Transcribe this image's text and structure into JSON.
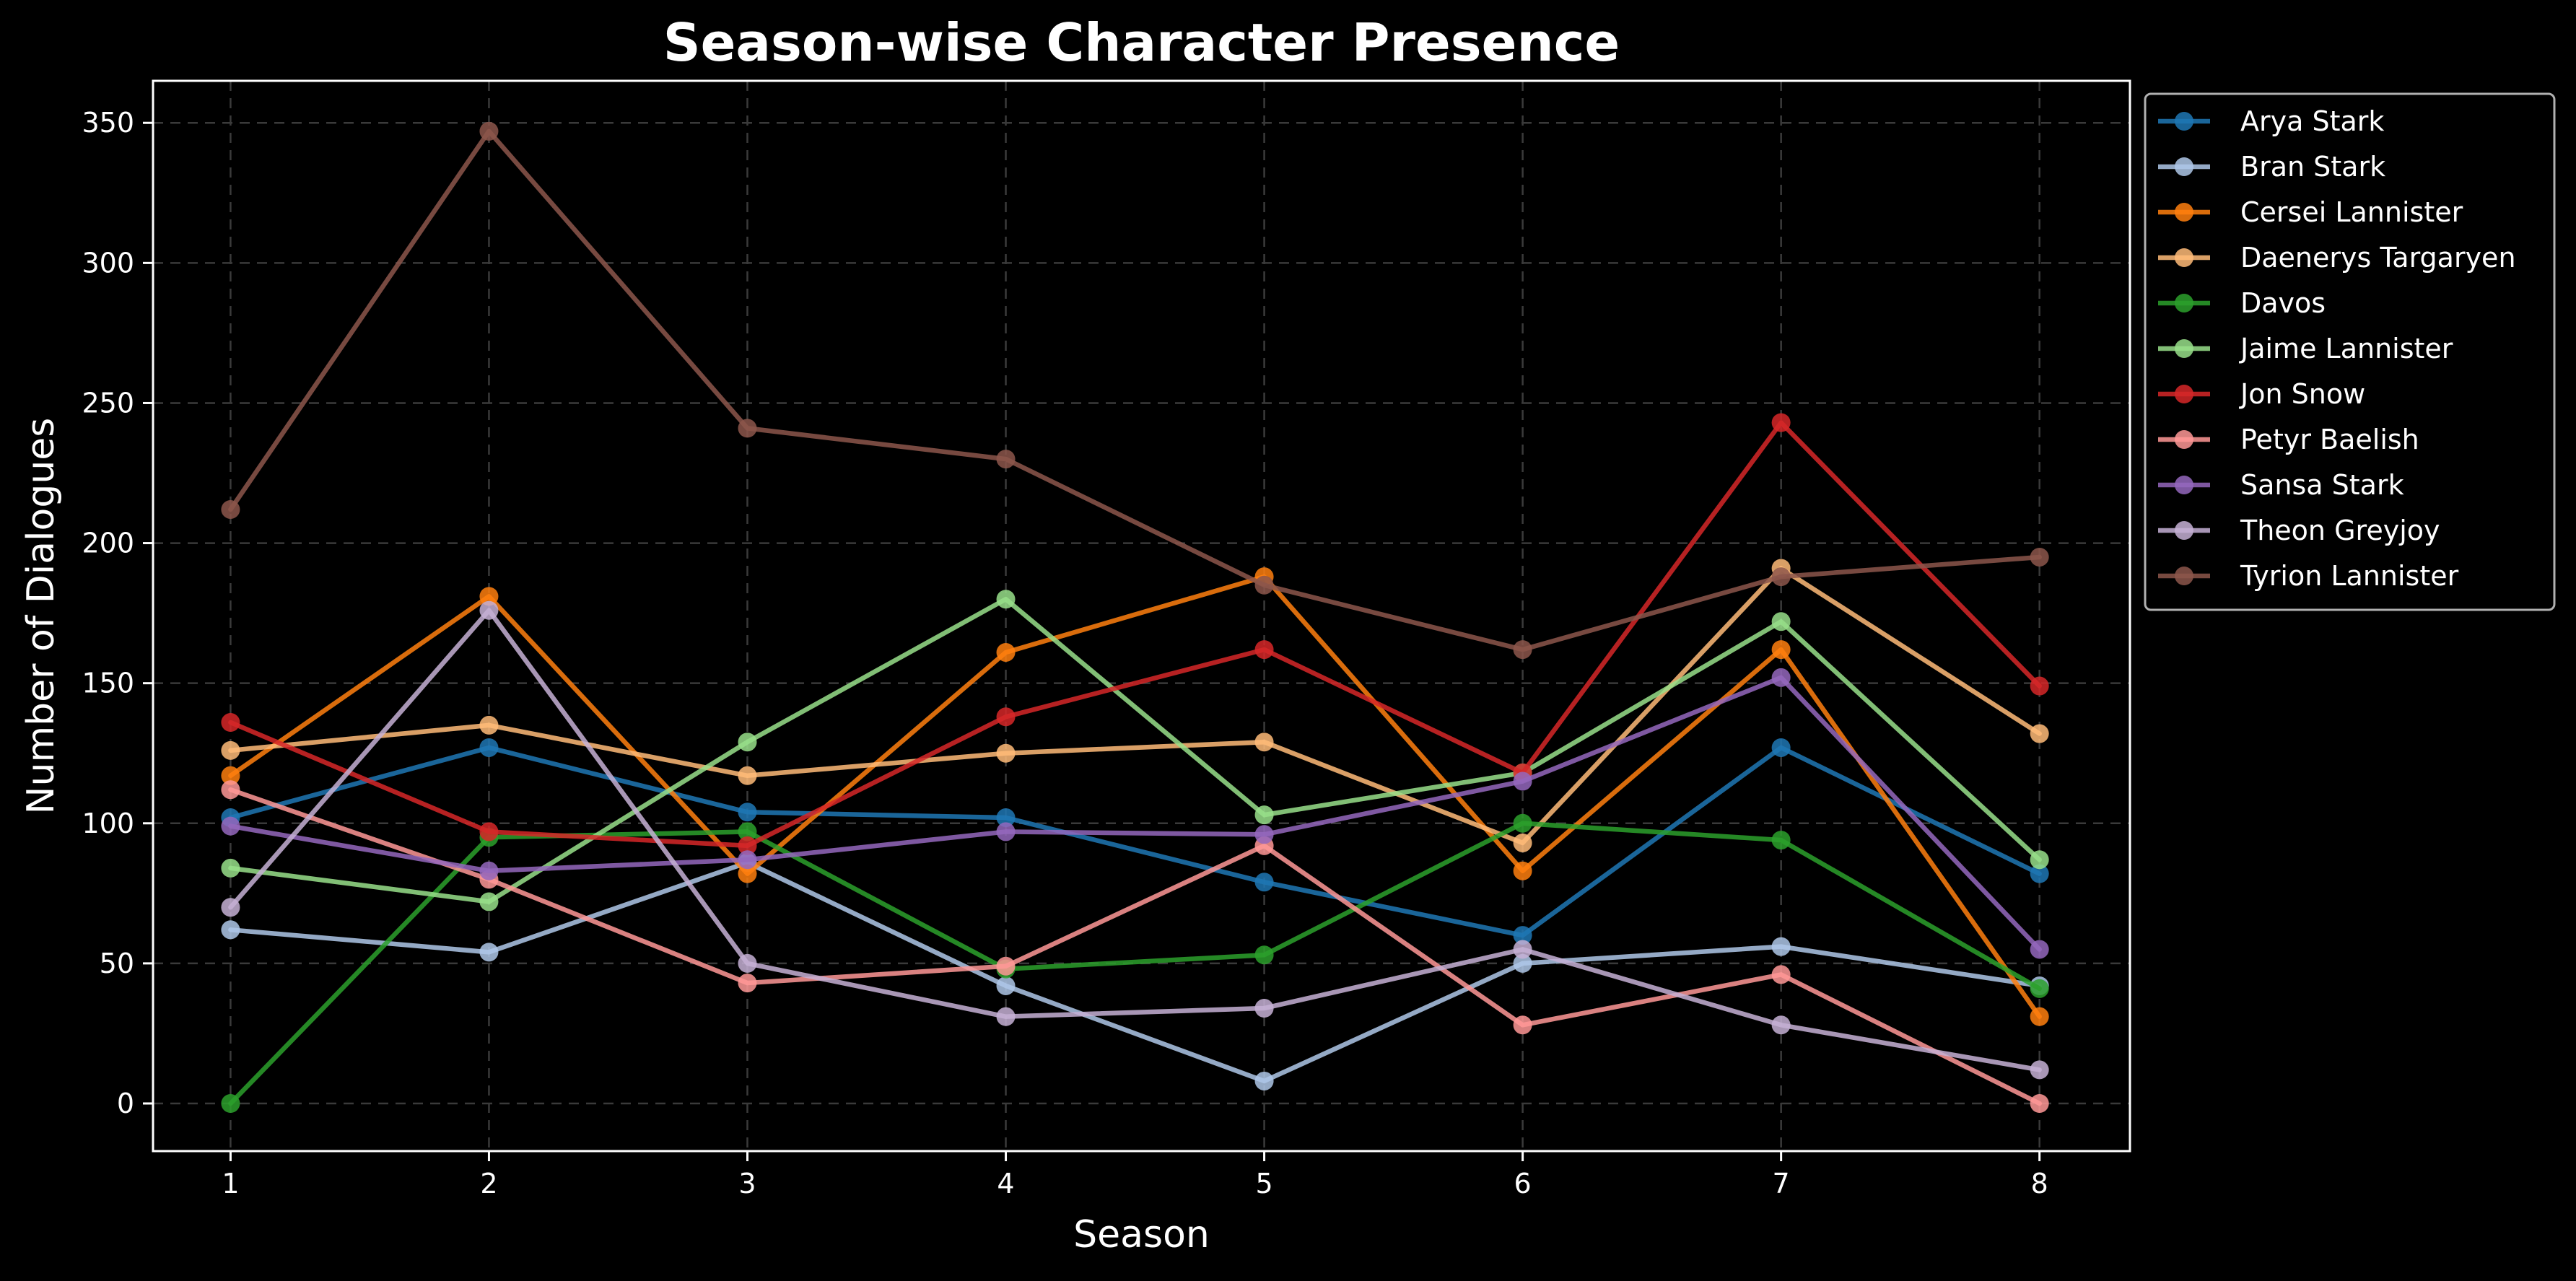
{
  "chart_data": {
    "type": "line",
    "title": "Season-wise Character Presence",
    "xlabel": "Season",
    "ylabel": "Number of Dialogues",
    "x": [
      1,
      2,
      3,
      4,
      5,
      6,
      7,
      8
    ],
    "xlim": [
      0.7,
      8.35
    ],
    "ylim": [
      -17,
      365
    ],
    "yticks": [
      0,
      50,
      100,
      150,
      200,
      250,
      300,
      350
    ],
    "grid": true,
    "legend_position": "outside-top-right",
    "series": [
      {
        "name": "Arya Stark",
        "color": "#1f77b4",
        "values": [
          102,
          127,
          104,
          102,
          79,
          60,
          127,
          82
        ]
      },
      {
        "name": "Bran Stark",
        "color": "#aec7e8",
        "values": [
          62,
          54,
          86,
          42,
          8,
          50,
          56,
          42
        ]
      },
      {
        "name": "Cersei Lannister",
        "color": "#ff7f0e",
        "values": [
          117,
          181,
          82,
          161,
          188,
          83,
          162,
          31
        ]
      },
      {
        "name": "Daenerys Targaryen",
        "color": "#ffbb78",
        "values": [
          126,
          135,
          117,
          125,
          129,
          93,
          191,
          132
        ]
      },
      {
        "name": "Davos",
        "color": "#2ca02c",
        "values": [
          0,
          95,
          97,
          48,
          53,
          100,
          94,
          41
        ]
      },
      {
        "name": "Jaime Lannister",
        "color": "#98df8a",
        "values": [
          84,
          72,
          129,
          180,
          103,
          118,
          172,
          87
        ]
      },
      {
        "name": "Jon Snow",
        "color": "#d62728",
        "values": [
          136,
          97,
          92,
          138,
          162,
          118,
          243,
          149
        ]
      },
      {
        "name": "Petyr Baelish",
        "color": "#ff9896",
        "values": [
          112,
          80,
          43,
          49,
          92,
          28,
          46,
          0
        ]
      },
      {
        "name": "Sansa Stark",
        "color": "#9467bd",
        "values": [
          99,
          83,
          87,
          97,
          96,
          115,
          152,
          55
        ]
      },
      {
        "name": "Theon Greyjoy",
        "color": "#c5b0d5",
        "values": [
          70,
          176,
          50,
          31,
          34,
          55,
          28,
          12
        ]
      },
      {
        "name": "Tyrion Lannister",
        "color": "#8c564b",
        "values": [
          212,
          347,
          241,
          230,
          185,
          162,
          188,
          195
        ]
      }
    ]
  }
}
